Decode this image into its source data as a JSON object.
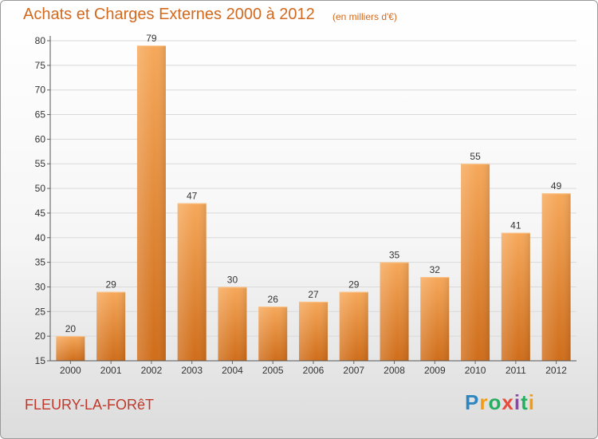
{
  "title": "Achats et Charges Externes 2000 à 2012",
  "subtitle": "(en milliers d'€)",
  "city": "FLEURY-LA-FORêT",
  "logo": {
    "text": "Proxiti",
    "letter_colors": [
      "#2e86c1",
      "#f39c12",
      "#27ae60",
      "#e74c3c",
      "#8e44ad",
      "#27ae60",
      "#f39c12"
    ]
  },
  "colors": {
    "bar_light": "#f6a85a",
    "bar_dark": "#cf6d1a",
    "title": "#d2691e",
    "city": "#c0392b",
    "grid": "#d9d9d9"
  },
  "chart_data": {
    "type": "bar",
    "categories": [
      "2000",
      "2001",
      "2002",
      "2003",
      "2004",
      "2005",
      "2006",
      "2007",
      "2008",
      "2009",
      "2010",
      "2011",
      "2012"
    ],
    "values": [
      20,
      29,
      79,
      47,
      30,
      26,
      27,
      29,
      35,
      32,
      55,
      41,
      49
    ],
    "ylim": [
      15,
      80
    ],
    "yticks": [
      15,
      20,
      25,
      30,
      35,
      40,
      45,
      50,
      55,
      60,
      65,
      70,
      75,
      80
    ],
    "grid": true,
    "data_labels": true
  }
}
